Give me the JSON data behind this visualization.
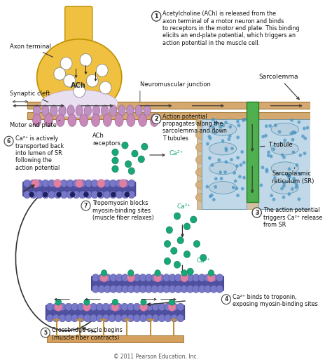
{
  "copyright": "© 2011 Pearson Education, Inc.",
  "background_color": "#ffffff",
  "fig_width": 4.74,
  "fig_height": 5.16,
  "dpi": 100,
  "step1": "Acetylcholine (ACh) is released from the\naxon terminal of a motor neuron and binds\nto receptors in the motor end plate. This binding\nelicits an end-plate potential, which triggers an\naction potential in the muscle cell.",
  "step2": "Action potential\npropagates along the\nsarcolemma and down\nT tubules",
  "step3": "The action potential\ntriggers Ca²⁺ release\nfrom SR",
  "step4": "Ca²⁺ binds to troponin,\nexposing myosin-binding sites",
  "step5": "Crossbridge cycle begins\n(muscle fiber contracts)",
  "step6": "Ca²⁺ is actively\ntransported back\ninto lumen of SR\nfollowing the\naction potential",
  "step7": "Tropomyosin blocks\nmyosin-binding sites\n(muscle fiber relaxes)",
  "label_axon": "Axon terminal",
  "label_synaptic": "Synaptic cleft",
  "label_ach": "ACh",
  "label_motor": "Motor end plate",
  "label_ach_rec": "ACh\nreceptors",
  "label_nmj": "Neuromuscular junction",
  "label_sarc": "Sarcolemma",
  "label_ttube": "T tubule",
  "label_sr": "Sarcoplasmic\nreticulum (SR)",
  "label_ca": "Ca²⁺",
  "colors": {
    "axon_fill": "#f0c040",
    "axon_edge": "#c09000",
    "sarc_fill": "#d4a870",
    "sarc_edge": "#a07830",
    "ttube_fill": "#50b050",
    "ttube_edge": "#208020",
    "sr_fill": "#a8cce0",
    "sr_edge": "#5090b0",
    "sr_bg": "#c0d8e8",
    "muscle_bg": "#c0d8e8",
    "bead_blue": "#7878c8",
    "bead_dark": "#3838a8",
    "bead_pink": "#e080a0",
    "ca_green": "#18a878",
    "ca_edge": "#107850",
    "crossbridge": "#d4a060",
    "crossbridge_edge": "#a07030",
    "receptor_fill": "#d090c0",
    "receptor_edge": "#a060a0",
    "vesicle_fill": "#ffffff",
    "vesicle_edge": "#888888",
    "arrow_color": "#333333",
    "text_dark": "#111111",
    "text_step": "#222222"
  }
}
